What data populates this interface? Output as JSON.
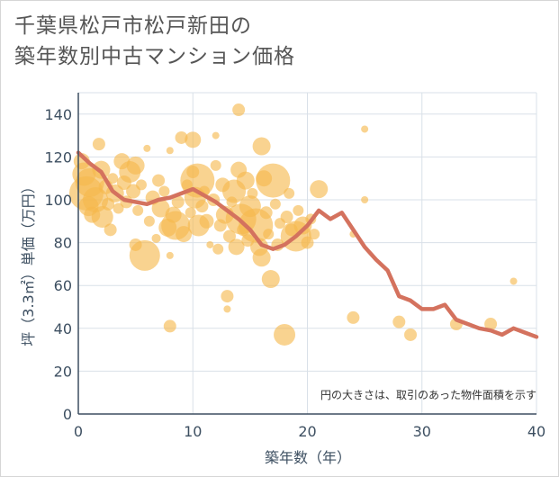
{
  "title": {
    "line1": "千葉県松戸市松戸新田の",
    "line2": "築年数別中古マンション価格"
  },
  "colors": {
    "bubble": "#f5b84c",
    "line": "#d4725e",
    "grid": "#d9e0e8",
    "axis_text": "#3d4f61"
  },
  "chart_data": {
    "type": "scatter",
    "xlabel": "築年数（年）",
    "ylabel": "坪（3.3㎡）単価（万円）",
    "xlim": [
      0,
      40
    ],
    "ylim": [
      0,
      150
    ],
    "xticks": [
      0,
      10,
      20,
      30,
      40
    ],
    "yticks": [
      0,
      20,
      40,
      60,
      80,
      100,
      120,
      140
    ],
    "grid": true,
    "note": "円の大きさは、取引のあった物件面積を示す",
    "bubbles": [
      {
        "x": 0.3,
        "y": 118,
        "s": 9
      },
      {
        "x": 0.5,
        "y": 112,
        "s": 13
      },
      {
        "x": 0.7,
        "y": 103,
        "s": 19
      },
      {
        "x": 0.9,
        "y": 97,
        "s": 11
      },
      {
        "x": 1.0,
        "y": 108,
        "s": 16
      },
      {
        "x": 1.2,
        "y": 93,
        "s": 9
      },
      {
        "x": 1.5,
        "y": 100,
        "s": 14
      },
      {
        "x": 1.8,
        "y": 126,
        "s": 7
      },
      {
        "x": 2.0,
        "y": 114,
        "s": 10
      },
      {
        "x": 2.1,
        "y": 92,
        "s": 12
      },
      {
        "x": 2.4,
        "y": 106,
        "s": 8
      },
      {
        "x": 2.6,
        "y": 98,
        "s": 7
      },
      {
        "x": 2.8,
        "y": 86,
        "s": 7
      },
      {
        "x": 3.0,
        "y": 110,
        "s": 6
      },
      {
        "x": 3.2,
        "y": 103,
        "s": 10
      },
      {
        "x": 3.5,
        "y": 96,
        "s": 6
      },
      {
        "x": 3.8,
        "y": 118,
        "s": 9
      },
      {
        "x": 4.0,
        "y": 108,
        "s": 8
      },
      {
        "x": 4.2,
        "y": 99,
        "s": 7
      },
      {
        "x": 4.5,
        "y": 113,
        "s": 12
      },
      {
        "x": 4.8,
        "y": 104,
        "s": 8
      },
      {
        "x": 5.0,
        "y": 116,
        "s": 10
      },
      {
        "x": 5.0,
        "y": 79,
        "s": 7
      },
      {
        "x": 5.2,
        "y": 95,
        "s": 6
      },
      {
        "x": 5.5,
        "y": 107,
        "s": 6
      },
      {
        "x": 5.8,
        "y": 74,
        "s": 17
      },
      {
        "x": 6.0,
        "y": 124,
        "s": 4
      },
      {
        "x": 6.2,
        "y": 90,
        "s": 6
      },
      {
        "x": 6.5,
        "y": 101,
        "s": 8
      },
      {
        "x": 6.8,
        "y": 82,
        "s": 5
      },
      {
        "x": 7.0,
        "y": 109,
        "s": 7
      },
      {
        "x": 7.2,
        "y": 96,
        "s": 10
      },
      {
        "x": 7.5,
        "y": 104,
        "s": 6
      },
      {
        "x": 7.8,
        "y": 87,
        "s": 10
      },
      {
        "x": 8.0,
        "y": 123,
        "s": 4
      },
      {
        "x": 8.0,
        "y": 41,
        "s": 7
      },
      {
        "x": 8.0,
        "y": 74,
        "s": 4
      },
      {
        "x": 8.3,
        "y": 93,
        "s": 9
      },
      {
        "x": 8.5,
        "y": 88,
        "s": 16
      },
      {
        "x": 8.7,
        "y": 99,
        "s": 7
      },
      {
        "x": 9.0,
        "y": 129,
        "s": 7
      },
      {
        "x": 9.2,
        "y": 84,
        "s": 9
      },
      {
        "x": 9.5,
        "y": 107,
        "s": 6
      },
      {
        "x": 9.8,
        "y": 94,
        "s": 6
      },
      {
        "x": 10.0,
        "y": 128,
        "s": 9
      },
      {
        "x": 10.0,
        "y": 113,
        "s": 7
      },
      {
        "x": 10.2,
        "y": 101,
        "s": 12
      },
      {
        "x": 10.4,
        "y": 109,
        "s": 19
      },
      {
        "x": 10.5,
        "y": 88,
        "s": 12
      },
      {
        "x": 10.8,
        "y": 97,
        "s": 7
      },
      {
        "x": 11.0,
        "y": 104,
        "s": 6
      },
      {
        "x": 11.2,
        "y": 90,
        "s": 8
      },
      {
        "x": 11.5,
        "y": 79,
        "s": 4
      },
      {
        "x": 11.8,
        "y": 100,
        "s": 7
      },
      {
        "x": 12.0,
        "y": 130,
        "s": 4
      },
      {
        "x": 12.0,
        "y": 116,
        "s": 6
      },
      {
        "x": 12.2,
        "y": 77,
        "s": 6
      },
      {
        "x": 12.4,
        "y": 88,
        "s": 7
      },
      {
        "x": 12.6,
        "y": 107,
        "s": 8
      },
      {
        "x": 12.8,
        "y": 93,
        "s": 10
      },
      {
        "x": 13.0,
        "y": 55,
        "s": 7
      },
      {
        "x": 13.0,
        "y": 49,
        "s": 4
      },
      {
        "x": 13.2,
        "y": 83,
        "s": 7
      },
      {
        "x": 13.4,
        "y": 99,
        "s": 6
      },
      {
        "x": 13.6,
        "y": 104,
        "s": 13
      },
      {
        "x": 13.8,
        "y": 78,
        "s": 9
      },
      {
        "x": 14.0,
        "y": 114,
        "s": 9
      },
      {
        "x": 14.0,
        "y": 142,
        "s": 7
      },
      {
        "x": 14.2,
        "y": 91,
        "s": 17
      },
      {
        "x": 14.4,
        "y": 86,
        "s": 7
      },
      {
        "x": 14.6,
        "y": 109,
        "s": 10
      },
      {
        "x": 14.8,
        "y": 81,
        "s": 7
      },
      {
        "x": 15.0,
        "y": 97,
        "s": 12
      },
      {
        "x": 15.2,
        "y": 103,
        "s": 6
      },
      {
        "x": 15.5,
        "y": 88,
        "s": 19
      },
      {
        "x": 15.8,
        "y": 78,
        "s": 10
      },
      {
        "x": 16.0,
        "y": 125,
        "s": 10
      },
      {
        "x": 16.0,
        "y": 73,
        "s": 10
      },
      {
        "x": 16.2,
        "y": 110,
        "s": 9
      },
      {
        "x": 16.4,
        "y": 94,
        "s": 7
      },
      {
        "x": 16.6,
        "y": 84,
        "s": 6
      },
      {
        "x": 16.8,
        "y": 63,
        "s": 10
      },
      {
        "x": 17.0,
        "y": 109,
        "s": 19
      },
      {
        "x": 17.2,
        "y": 98,
        "s": 6
      },
      {
        "x": 17.4,
        "y": 79,
        "s": 7
      },
      {
        "x": 17.6,
        "y": 89,
        "s": 6
      },
      {
        "x": 18.0,
        "y": 37,
        "s": 12
      },
      {
        "x": 18.2,
        "y": 92,
        "s": 7
      },
      {
        "x": 18.4,
        "y": 103,
        "s": 6
      },
      {
        "x": 18.6,
        "y": 86,
        "s": 7
      },
      {
        "x": 19.0,
        "y": 83,
        "s": 17
      },
      {
        "x": 19.2,
        "y": 95,
        "s": 6
      },
      {
        "x": 19.6,
        "y": 88,
        "s": 10
      },
      {
        "x": 20.0,
        "y": 80,
        "s": 7
      },
      {
        "x": 20.3,
        "y": 91,
        "s": 6
      },
      {
        "x": 20.6,
        "y": 84,
        "s": 6
      },
      {
        "x": 21.0,
        "y": 105,
        "s": 10
      },
      {
        "x": 24.0,
        "y": 84,
        "s": 4
      },
      {
        "x": 24.0,
        "y": 45,
        "s": 7
      },
      {
        "x": 25.0,
        "y": 133,
        "s": 4
      },
      {
        "x": 25.0,
        "y": 100,
        "s": 4
      },
      {
        "x": 28.0,
        "y": 43,
        "s": 7
      },
      {
        "x": 29.0,
        "y": 37,
        "s": 7
      },
      {
        "x": 33.0,
        "y": 42,
        "s": 7
      },
      {
        "x": 36.0,
        "y": 42,
        "s": 7
      },
      {
        "x": 38.0,
        "y": 62,
        "s": 4
      }
    ],
    "series": [
      {
        "x": [
          0,
          1,
          2,
          3,
          4,
          5,
          6,
          7,
          8,
          9,
          10,
          11,
          12,
          13,
          14,
          15,
          16,
          17,
          18,
          19,
          20,
          21,
          22,
          23,
          24,
          25,
          26,
          27,
          28,
          29,
          30,
          31,
          32,
          33,
          34,
          35,
          36,
          37,
          38,
          39,
          40
        ],
        "values": [
          122,
          117,
          113,
          104,
          100,
          99,
          98,
          100,
          101,
          103,
          105,
          102,
          99,
          95,
          91,
          86,
          79,
          77,
          79,
          83,
          88,
          95,
          91,
          94,
          86,
          78,
          72,
          67,
          55,
          53,
          49,
          49,
          51,
          44,
          42,
          40,
          39,
          37,
          40,
          38,
          36
        ]
      }
    ]
  }
}
